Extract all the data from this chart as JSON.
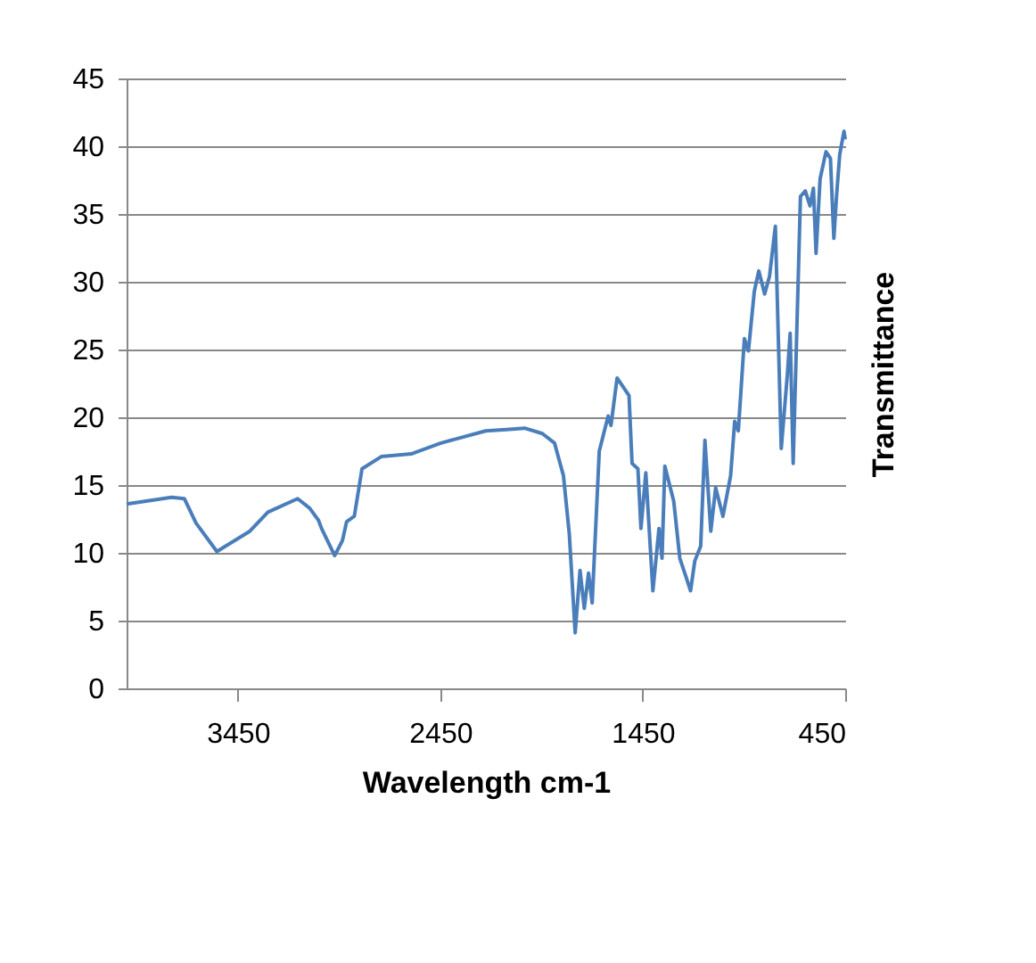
{
  "chart_data": {
    "type": "line",
    "xlabel": "Wavelength cm-1",
    "ylabel": "Transmittance",
    "x": [
      4000,
      3778,
      3715,
      3657,
      3554,
      3391,
      3302,
      3155,
      3096,
      3052,
      3037,
      2972,
      2934,
      2913,
      2875,
      2837,
      2742,
      2594,
      2447,
      2226,
      2123,
      2034,
      1946,
      1886,
      1842,
      1813,
      1784,
      1760,
      1739,
      1718,
      1700,
      1665,
      1621,
      1607,
      1577,
      1518,
      1503,
      1474,
      1459,
      1435,
      1400,
      1370,
      1355,
      1341,
      1297,
      1267,
      1238,
      1214,
      1193,
      1164,
      1143,
      1114,
      1090,
      1054,
      1016,
      996,
      978,
      948,
      928,
      899,
      877,
      848,
      824,
      795,
      766,
      736,
      722,
      707,
      671,
      647,
      624,
      607,
      594,
      574,
      545,
      523,
      506,
      492,
      477,
      456,
      450
    ],
    "series": [
      {
        "color": "#4a7ebb",
        "values": [
          13.6,
          14.1,
          14.0,
          12.2,
          10.1,
          11.6,
          13.0,
          14.0,
          13.3,
          12.4,
          11.8,
          9.8,
          10.9,
          12.3,
          12.7,
          16.2,
          17.1,
          17.3,
          18.1,
          19.0,
          19.1,
          19.2,
          18.8,
          18.1,
          15.7,
          11.4,
          4.1,
          8.7,
          5.9,
          8.5,
          6.3,
          17.5,
          20.1,
          19.4,
          22.9,
          21.6,
          16.6,
          16.2,
          11.8,
          15.9,
          7.2,
          11.8,
          9.6,
          16.4,
          13.8,
          9.6,
          8.3,
          7.2,
          9.4,
          10.5,
          18.3,
          11.6,
          14.8,
          12.7,
          15.7,
          19.7,
          19.0,
          25.8,
          24.9,
          29.3,
          30.8,
          29.1,
          30.4,
          34.1,
          17.7,
          23.1,
          26.2,
          16.6,
          36.3,
          36.7,
          35.6,
          36.9,
          32.1,
          37.6,
          39.6,
          39.1,
          33.2,
          36.5,
          39.4,
          41.1,
          40.5
        ]
      }
    ],
    "xlim": [
      4000,
      450
    ],
    "xticks": [
      3450,
      2450,
      1450,
      450
    ],
    "ylim": [
      0,
      45
    ],
    "yticks": [
      0,
      5,
      10,
      15,
      20,
      25,
      30,
      35,
      40,
      45
    ],
    "grid": "y",
    "marker": "none",
    "line_style": "solid"
  }
}
